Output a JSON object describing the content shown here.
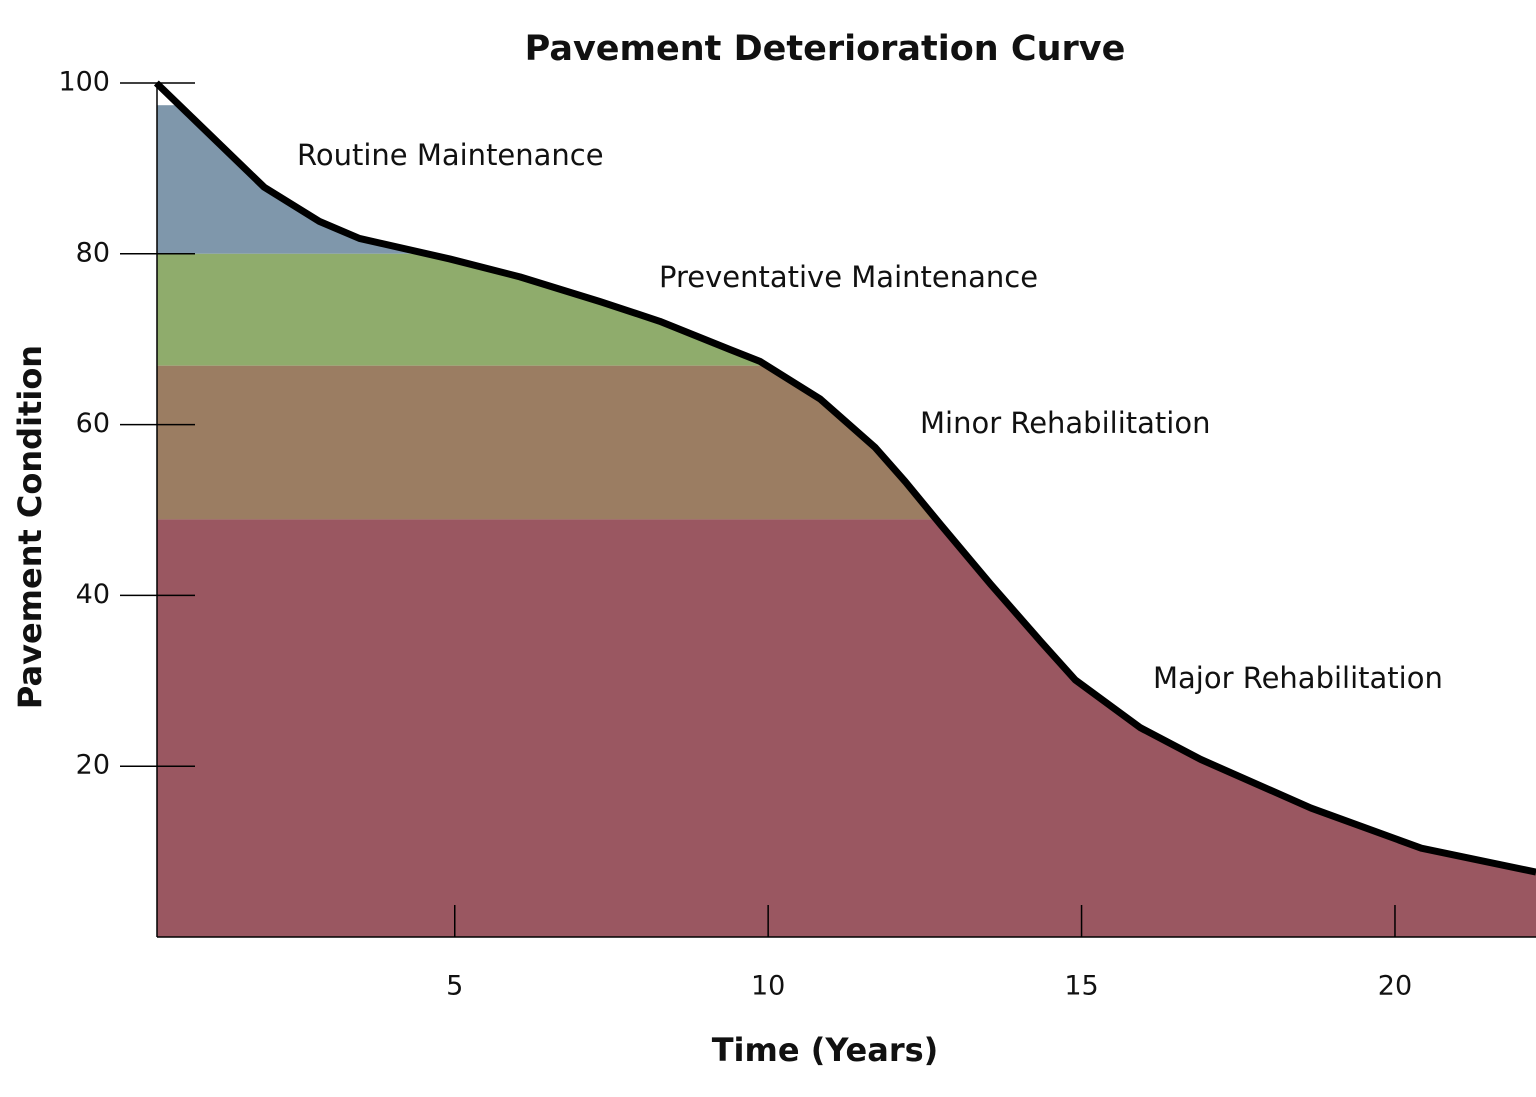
{
  "chart_data": {
    "type": "area",
    "title": "Pavement Deterioration Curve",
    "x_label": "Time (Years)",
    "y_label": "Pavement Condition",
    "xlim": [
      0.25,
      22.25
    ],
    "ylim": [
      0,
      100
    ],
    "xticks": [
      5,
      10,
      15,
      20
    ],
    "yticks": [
      20,
      40,
      60,
      80,
      100
    ],
    "line_color": "#000000",
    "x": [
      0.24,
      1.96,
      2.84,
      3.48,
      4.92,
      6.04,
      7.32,
      8.27,
      9.39,
      9.87,
      10.83,
      11.71,
      12.19,
      12.75,
      13.55,
      14.35,
      14.9,
      15.94,
      16.9,
      18.66,
      20.42,
      22.25
    ],
    "values": [
      100,
      87.8,
      83.8,
      81.8,
      79.4,
      77.3,
      74.4,
      72.1,
      68.8,
      67.4,
      63.0,
      57.3,
      53.3,
      48.3,
      41.3,
      34.6,
      30.1,
      24.5,
      20.8,
      15.1,
      10.4,
      7.6
    ],
    "bands": [
      {
        "name": "Routine Maintenance",
        "color": "#7f97ab",
        "range": [
          80,
          97.4
        ]
      },
      {
        "name": "Preventative Maintenance",
        "color": "#8fac6c",
        "range": [
          66.9,
          80
        ]
      },
      {
        "name": "Minor Rehabilitation",
        "color": "#9b7d62",
        "range": [
          48.9,
          66.9
        ]
      },
      {
        "name": "Major Rehabilitation",
        "color": "#9a5761",
        "range": [
          0,
          48.9
        ]
      }
    ]
  }
}
